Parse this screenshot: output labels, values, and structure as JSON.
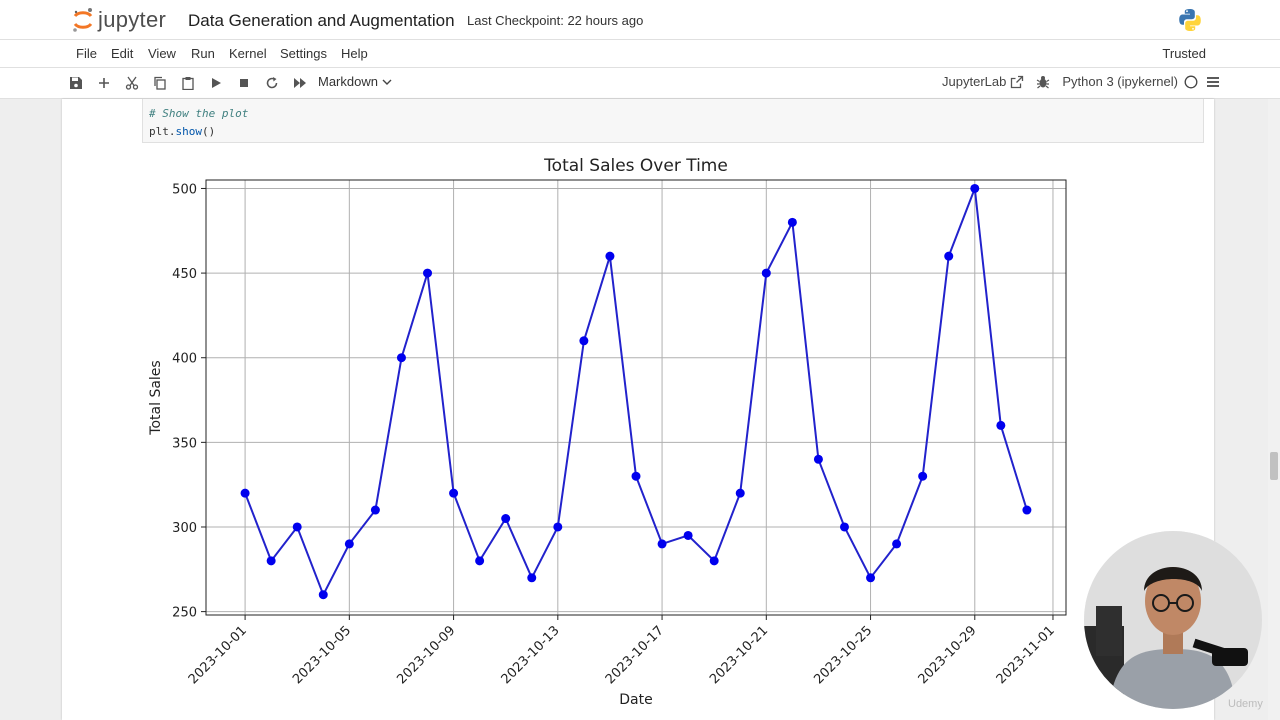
{
  "header": {
    "logo_text": "jupyter",
    "notebook_title": "Data Generation and Augmentation",
    "checkpoint": "Last Checkpoint: 22 hours ago"
  },
  "menu": {
    "items": [
      "File",
      "Edit",
      "View",
      "Run",
      "Kernel",
      "Settings",
      "Help"
    ],
    "trusted": "Trusted"
  },
  "toolbar": {
    "cell_type": "Markdown",
    "jupyterlab_link": "JupyterLab",
    "kernel_name": "Python 3 (ipykernel)"
  },
  "code_cell": {
    "line1": "# Show the plot",
    "line2_obj": "plt.",
    "line2_fn": "show",
    "line2_end": "()"
  },
  "chart_data": {
    "type": "line",
    "title": "Total Sales Over Time",
    "xlabel": "Date",
    "ylabel": "Total Sales",
    "x_ticks": [
      "2023-10-01",
      "2023-10-05",
      "2023-10-09",
      "2023-10-13",
      "2023-10-17",
      "2023-10-21",
      "2023-10-25",
      "2023-10-29",
      "2023-11-01"
    ],
    "y_ticks": [
      250,
      300,
      350,
      400,
      450,
      500
    ],
    "ylim": [
      248,
      505
    ],
    "grid": true,
    "line_color": "#2222cc",
    "marker_color": "#0000ee",
    "series": [
      {
        "x": [
          "2023-10-01",
          "2023-10-02",
          "2023-10-03",
          "2023-10-04",
          "2023-10-05",
          "2023-10-06",
          "2023-10-07",
          "2023-10-08",
          "2023-10-09",
          "2023-10-10",
          "2023-10-11",
          "2023-10-12",
          "2023-10-13",
          "2023-10-14",
          "2023-10-15",
          "2023-10-16",
          "2023-10-17",
          "2023-10-18",
          "2023-10-19",
          "2023-10-20",
          "2023-10-21",
          "2023-10-22",
          "2023-10-23",
          "2023-10-24",
          "2023-10-25",
          "2023-10-26",
          "2023-10-27",
          "2023-10-28",
          "2023-10-29",
          "2023-10-30",
          "2023-10-31"
        ],
        "values": [
          320,
          280,
          300,
          260,
          290,
          310,
          400,
          450,
          320,
          280,
          305,
          270,
          300,
          410,
          460,
          330,
          290,
          295,
          280,
          320,
          450,
          480,
          340,
          300,
          270,
          290,
          330,
          460,
          500,
          360,
          310
        ]
      }
    ]
  },
  "watermark": "Udemy"
}
